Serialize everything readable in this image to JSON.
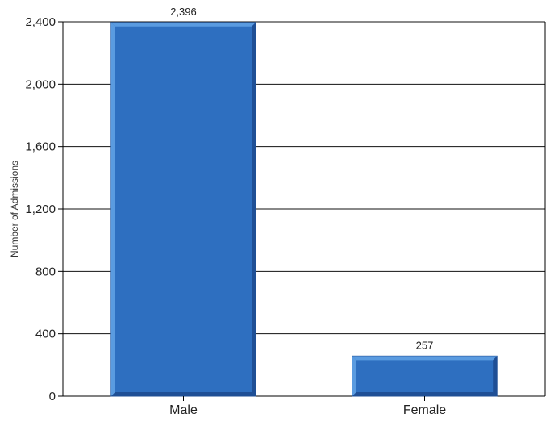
{
  "chart_data": {
    "type": "bar",
    "categories": [
      "Male",
      "Female"
    ],
    "values": [
      2396,
      257
    ],
    "data_labels": [
      "2,396",
      "257"
    ],
    "title": "",
    "xlabel": "",
    "ylabel": "Number of Admissions",
    "ylim": [
      0,
      2400
    ],
    "yticks": [
      0,
      400,
      800,
      1200,
      1600,
      2000,
      2400
    ],
    "ytick_labels": [
      "0",
      "400",
      "800",
      "1,200",
      "1,600",
      "2,000",
      "2,400"
    ],
    "grid": true,
    "legend": "none",
    "bar_color": "#2e6fc0",
    "bar_edge_color": "#1f4f95",
    "bar_highlight_color": "#5a9be0"
  }
}
